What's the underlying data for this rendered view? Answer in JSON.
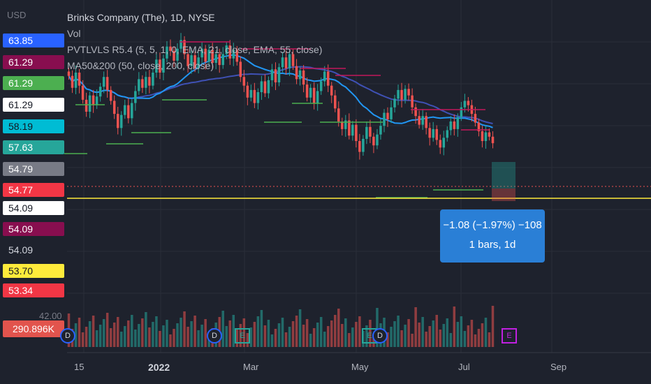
{
  "header": {
    "currency": "USD",
    "title": "Brinks Company (The), 1D, NYSE",
    "indicators": [
      "Vol",
      "PVTLVLS R5.4 (5, 5, 1, 0, EMA, 21, close, EMA, 55, close)",
      "MA50&200 (50, close, 200, close)"
    ]
  },
  "price_tags": [
    {
      "label": "63.85",
      "bg": "#2962ff",
      "fg": "#ffffff"
    },
    {
      "label": "61.29",
      "bg": "#880e4f",
      "fg": "#ffffff"
    },
    {
      "label": "61.29",
      "bg": "#4caf50",
      "fg": "#ffffff"
    },
    {
      "label": "61.29",
      "bg": "#ffffff",
      "fg": "#131722"
    },
    {
      "label": "58.19",
      "bg": "#00bcd4",
      "fg": "#131722"
    },
    {
      "label": "57.63",
      "bg": "#26a69a",
      "fg": "#ffffff"
    },
    {
      "label": "54.79",
      "bg": "#787b86",
      "fg": "#ffffff"
    },
    {
      "label": "54.77",
      "bg": "#f23645",
      "fg": "#ffffff"
    },
    {
      "label": "54.09",
      "bg": "#ffffff",
      "fg": "#131722"
    },
    {
      "label": "54.09",
      "bg": "#880e4f",
      "fg": "#ffffff"
    },
    {
      "label": "54.09",
      "bg": "#1e222d",
      "fg": "#d1d4dc"
    },
    {
      "label": "53.70",
      "bg": "#ffeb3b",
      "fg": "#131722"
    },
    {
      "label": "53.34",
      "bg": "#f23645",
      "fg": "#ffffff"
    }
  ],
  "volume_axis": {
    "label": "42.00",
    "current": "290.896K"
  },
  "measure_tooltip": {
    "line1": "−1.08 (−1.97%) −108",
    "line2": "1 bars, 1d"
  },
  "x_axis": [
    {
      "label": "15",
      "bold": false
    },
    {
      "label": "2022",
      "bold": true
    },
    {
      "label": "Mar",
      "bold": false
    },
    {
      "label": "May",
      "bold": false
    },
    {
      "label": "Jul",
      "bold": false
    },
    {
      "label": "Sep",
      "bold": false
    }
  ],
  "events": [
    {
      "type": "dividend",
      "label": "D"
    },
    {
      "type": "dividend",
      "label": "D"
    },
    {
      "type": "earnings",
      "label": "E"
    },
    {
      "type": "earnings",
      "label": "E"
    },
    {
      "type": "dividend",
      "label": "D"
    },
    {
      "type": "earnings_upcoming",
      "label": "E"
    }
  ],
  "colors": {
    "up": "#26a69a",
    "down": "#ef5350",
    "ma50": "#2196f3",
    "ma200": "#3f51b5",
    "support": "#4caf50",
    "resistance": "#c2185b",
    "last_price_line": "#ffeb3b"
  },
  "chart_data": {
    "type": "candlestick",
    "ylim": [
      48,
      66
    ],
    "closes": [
      60.3,
      59.2,
      60.6,
      59.4,
      58.1,
      57.0,
      58.5,
      57.6,
      58.4,
      59.3,
      60.2,
      59.0,
      58.0,
      56.8,
      55.5,
      56.7,
      57.6,
      56.4,
      57.8,
      58.9,
      60.0,
      59.2,
      60.2,
      59.4,
      60.6,
      61.8,
      60.6,
      61.9,
      63.0,
      62.6,
      61.7,
      62.8,
      63.6,
      62.3,
      61.2,
      62.2,
      61.0,
      62.0,
      62.8,
      61.6,
      62.7,
      61.5,
      62.3,
      61.3,
      62.3,
      63.1,
      61.9,
      62.7,
      61.6,
      60.2,
      59.4,
      58.3,
      59.0,
      57.8,
      58.8,
      59.8,
      58.7,
      59.9,
      60.9,
      59.7,
      61.1,
      62.0,
      61.0,
      62.3,
      61.2,
      60.0,
      60.8,
      59.5,
      58.3,
      59.2,
      57.8,
      58.9,
      59.8,
      60.7,
      59.4,
      58.5,
      57.3,
      56.1,
      55.4,
      56.2,
      54.8,
      55.8,
      54.3,
      53.3,
      54.5,
      55.6,
      54.7,
      53.9,
      54.9,
      55.7,
      56.9,
      56.3,
      57.4,
      58.2,
      59.0,
      58.1,
      59.1,
      58.5,
      57.4,
      56.6,
      55.8,
      56.6,
      55.5,
      54.6,
      55.4,
      54.4,
      53.7,
      54.6,
      55.3,
      56.1,
      55.4,
      56.5,
      57.4,
      58.0,
      57.6,
      56.8,
      56.0,
      55.2,
      54.3,
      55.1,
      54.7,
      54.1
    ]
  }
}
